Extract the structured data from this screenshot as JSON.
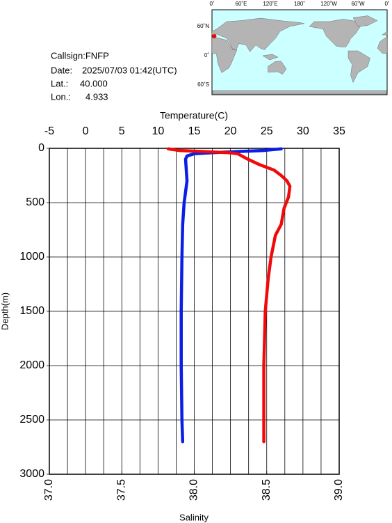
{
  "info": {
    "callsign": "Callsign:FNFP",
    "date_label": "Date:",
    "date": "2025/07/03 01:42(UTC)",
    "lat_label": "Lat.:",
    "lat": "40.000",
    "lon_label": "Lon.:",
    "lon": "4.933"
  },
  "map": {
    "lon_ticks": [
      {
        "value": 0,
        "label": "0˚"
      },
      {
        "value": 60,
        "label": "60˚E"
      },
      {
        "value": 120,
        "label": "120˚E"
      },
      {
        "value": 180,
        "label": "180˚"
      },
      {
        "value": 240,
        "label": "120˚W"
      },
      {
        "value": 300,
        "label": "60˚W"
      },
      {
        "value": 360,
        "label": "0˚"
      }
    ],
    "lat_ticks": [
      {
        "value": 60,
        "label": "60˚N"
      },
      {
        "value": 0,
        "label": "0˚"
      },
      {
        "value": -60,
        "label": "60˚S"
      }
    ]
  },
  "chart_data": {
    "type": "line",
    "xlabel": "Temperature(C)",
    "xlim": [
      -5,
      35
    ],
    "xticks": [
      -5,
      0,
      5,
      10,
      15,
      20,
      25,
      30,
      35
    ],
    "xgrid": [
      -2.5,
      2.5,
      7.5,
      12.5,
      17.5,
      22.5,
      27.5,
      32.5
    ],
    "x2label": "Salinity",
    "x2lim": [
      37,
      39
    ],
    "x2ticks": [
      {
        "value": 37,
        "label": "37.0"
      },
      37.5,
      {
        "value": 38,
        "label": "38.0"
      },
      38.5,
      {
        "value": 39,
        "label": "39.0"
      }
    ],
    "ylabel": "Depth(m)",
    "ylim": [
      0,
      3000
    ],
    "yticks": [
      0,
      500,
      1000,
      1500,
      2000,
      2500,
      3000
    ],
    "y_inverted": true,
    "grid": true,
    "series": [
      {
        "axis": "x",
        "color": "#0a1ee6",
        "depth": [
          5,
          20,
          30,
          40,
          50,
          70,
          100,
          200,
          300,
          400,
          500,
          700,
          1000,
          1500,
          2000,
          2500,
          2700
        ],
        "values": [
          27.0,
          24.5,
          21.0,
          17.5,
          15.0,
          14.0,
          13.8,
          13.9,
          14.0,
          13.8,
          13.6,
          13.4,
          13.3,
          13.2,
          13.2,
          13.3,
          13.4
        ]
      },
      {
        "axis": "x2",
        "color": "#f00a0a",
        "depth": [
          5,
          20,
          40,
          50,
          100,
          150,
          200,
          250,
          300,
          350,
          450,
          550,
          700,
          800,
          1000,
          1200,
          1500,
          2000,
          2700
        ],
        "values": [
          37.82,
          37.9,
          38.24,
          38.3,
          38.37,
          38.45,
          38.55,
          38.6,
          38.64,
          38.66,
          38.65,
          38.62,
          38.6,
          38.56,
          38.53,
          38.51,
          38.49,
          38.48,
          38.48
        ]
      }
    ]
  }
}
